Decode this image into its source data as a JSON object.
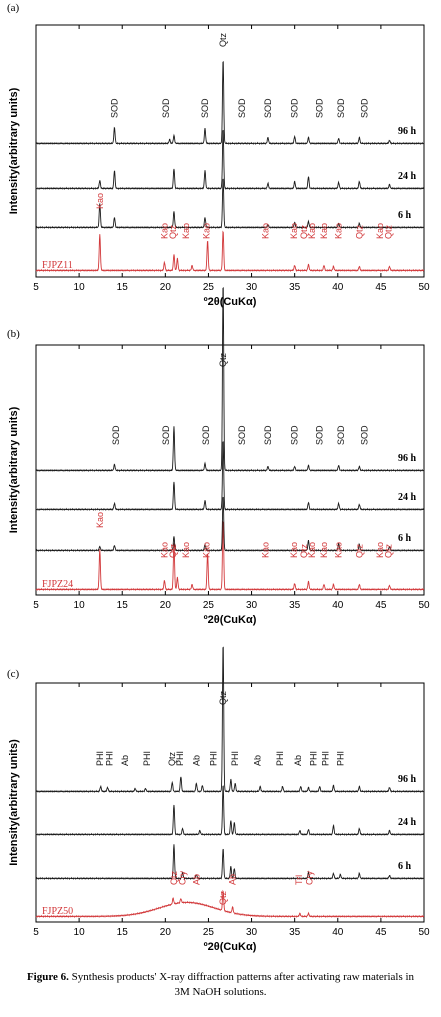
{
  "caption": {
    "label": "Figure 6.",
    "text": "Synthesis products' X-ray diffraction patterns after activating raw materials in 3M NaOH solutions."
  },
  "colors": {
    "raw": "#d2383a",
    "product": "#1a1a1a",
    "axis": "#000000"
  },
  "chart_data": [
    {
      "type": "line",
      "panel_label": "(a)",
      "xlabel": "º2θ(CuKα)",
      "ylabel": "Intensity(arbitrary units)",
      "xlim": [
        5,
        50
      ],
      "xticks": [
        5,
        10,
        15,
        20,
        25,
        30,
        35,
        40,
        45,
        50
      ],
      "grid": false,
      "series": [
        {
          "name": "FJPZ11",
          "role": "raw",
          "peaks": [
            [
              12.4,
              36
            ],
            [
              19.9,
              8
            ],
            [
              21.0,
              16
            ],
            [
              21.4,
              12
            ],
            [
              23.1,
              5
            ],
            [
              24.9,
              30
            ],
            [
              26.7,
              40
            ],
            [
              35.0,
              5
            ],
            [
              36.6,
              6
            ],
            [
              38.4,
              5
            ],
            [
              39.5,
              4
            ],
            [
              42.5,
              4
            ],
            [
              46.0,
              4
            ]
          ]
        },
        {
          "name": "6 h",
          "role": "product",
          "peaks": [
            [
              12.4,
              24
            ],
            [
              14.1,
              10
            ],
            [
              21.0,
              16
            ],
            [
              24.6,
              10
            ],
            [
              26.7,
              50
            ],
            [
              31.9,
              3
            ],
            [
              35.0,
              5
            ],
            [
              36.6,
              6
            ],
            [
              40.1,
              4
            ],
            [
              42.5,
              4
            ]
          ]
        },
        {
          "name": "24 h",
          "role": "product",
          "peaks": [
            [
              12.4,
              8
            ],
            [
              14.1,
              18
            ],
            [
              21.0,
              20
            ],
            [
              24.6,
              18
            ],
            [
              26.7,
              60
            ],
            [
              31.9,
              5
            ],
            [
              35.0,
              7
            ],
            [
              36.6,
              12
            ],
            [
              40.1,
              6
            ],
            [
              42.5,
              7
            ],
            [
              46.0,
              4
            ]
          ]
        },
        {
          "name": "96 h",
          "role": "product",
          "peaks": [
            [
              14.1,
              16
            ],
            [
              20.5,
              4
            ],
            [
              21.0,
              8
            ],
            [
              24.6,
              15
            ],
            [
              26.7,
              85
            ],
            [
              31.9,
              6
            ],
            [
              35.0,
              7
            ],
            [
              36.6,
              6
            ],
            [
              40.1,
              5
            ],
            [
              42.5,
              6
            ],
            [
              46.0,
              3
            ]
          ]
        }
      ],
      "annotations": [
        {
          "text": "SOD",
          "x": 14.1,
          "series": "96 h"
        },
        {
          "text": "SOD",
          "x": 20.1,
          "series": "96 h"
        },
        {
          "text": "SOD",
          "x": 24.6,
          "series": "96 h"
        },
        {
          "text": "Qtz",
          "x": 26.7,
          "series": "96 h"
        },
        {
          "text": "SOD",
          "x": 28.9,
          "series": "96 h"
        },
        {
          "text": "SOD",
          "x": 31.9,
          "series": "96 h"
        },
        {
          "text": "SOD",
          "x": 35.0,
          "series": "96 h"
        },
        {
          "text": "SOD",
          "x": 37.9,
          "series": "96 h"
        },
        {
          "text": "SOD",
          "x": 40.4,
          "series": "96 h"
        },
        {
          "text": "SOD",
          "x": 43.1,
          "series": "96 h"
        },
        {
          "text": "Kao",
          "x": 12.4,
          "series": "FJPZ11"
        },
        {
          "text": "Kao",
          "x": 19.9,
          "series": "FJPZ11"
        },
        {
          "text": "Qtz",
          "x": 20.9,
          "series": "FJPZ11"
        },
        {
          "text": "Kao",
          "x": 22.4,
          "series": "FJPZ11"
        },
        {
          "text": "Kao",
          "x": 24.8,
          "series": "FJPZ11"
        },
        {
          "text": "Kao",
          "x": 31.6,
          "series": "FJPZ11"
        },
        {
          "text": "Kao",
          "x": 34.9,
          "series": "FJPZ11"
        },
        {
          "text": "Qtz",
          "x": 36.1,
          "series": "FJPZ11"
        },
        {
          "text": "Kao",
          "x": 37.0,
          "series": "FJPZ11"
        },
        {
          "text": "Kao",
          "x": 38.4,
          "series": "FJPZ11"
        },
        {
          "text": "Kao",
          "x": 40.1,
          "series": "FJPZ11"
        },
        {
          "text": "Qtz",
          "x": 42.5,
          "series": "FJPZ11"
        },
        {
          "text": "Kao",
          "x": 44.9,
          "series": "FJPZ11"
        },
        {
          "text": "Qtz",
          "x": 45.9,
          "series": "FJPZ11"
        }
      ]
    },
    {
      "type": "line",
      "panel_label": "(b)",
      "xlabel": "º2θ(CuKα)",
      "ylabel": "Intensity(arbitrary units)",
      "xlim": [
        5,
        50
      ],
      "xticks": [
        5,
        10,
        15,
        20,
        25,
        30,
        35,
        40,
        45,
        50
      ],
      "grid": false,
      "series": [
        {
          "name": "FJPZ24",
          "role": "raw",
          "peaks": [
            [
              12.4,
              40
            ],
            [
              19.9,
              9
            ],
            [
              21.0,
              46
            ],
            [
              21.4,
              12
            ],
            [
              23.1,
              5
            ],
            [
              24.9,
              36
            ],
            [
              26.7,
              70
            ],
            [
              35.0,
              6
            ],
            [
              36.6,
              8
            ],
            [
              38.4,
              5
            ],
            [
              39.5,
              5
            ],
            [
              42.5,
              5
            ],
            [
              46.0,
              4
            ]
          ]
        },
        {
          "name": "6 h",
          "role": "product",
          "peaks": [
            [
              12.4,
              4
            ],
            [
              14.1,
              5
            ],
            [
              21.0,
              14
            ],
            [
              24.6,
              6
            ],
            [
              26.7,
              55
            ],
            [
              36.6,
              10
            ],
            [
              40.1,
              7
            ],
            [
              42.5,
              6
            ],
            [
              46.0,
              4
            ]
          ]
        },
        {
          "name": "24 h",
          "role": "product",
          "peaks": [
            [
              14.1,
              6
            ],
            [
              21.0,
              28
            ],
            [
              24.6,
              9
            ],
            [
              26.7,
              70
            ],
            [
              36.6,
              7
            ],
            [
              40.1,
              6
            ],
            [
              42.5,
              5
            ]
          ]
        },
        {
          "name": "96 h",
          "role": "product",
          "peaks": [
            [
              14.1,
              6
            ],
            [
              21.0,
              44
            ],
            [
              24.6,
              7
            ],
            [
              26.7,
              190
            ],
            [
              31.9,
              4
            ],
            [
              35.0,
              4
            ],
            [
              36.6,
              5
            ],
            [
              40.1,
              5
            ],
            [
              42.5,
              4
            ]
          ]
        }
      ],
      "annotations": [
        {
          "text": "SOD",
          "x": 14.3,
          "series": "96 h"
        },
        {
          "text": "SOD",
          "x": 20.1,
          "series": "96 h"
        },
        {
          "text": "SOD",
          "x": 24.7,
          "series": "96 h"
        },
        {
          "text": "Qtz",
          "x": 26.7,
          "series": "96 h"
        },
        {
          "text": "SOD",
          "x": 28.9,
          "series": "96 h"
        },
        {
          "text": "SOD",
          "x": 31.9,
          "series": "96 h"
        },
        {
          "text": "SOD",
          "x": 35.0,
          "series": "96 h"
        },
        {
          "text": "SOD",
          "x": 37.9,
          "series": "96 h"
        },
        {
          "text": "SOD",
          "x": 40.4,
          "series": "96 h"
        },
        {
          "text": "SOD",
          "x": 43.1,
          "series": "96 h"
        },
        {
          "text": "Kao",
          "x": 12.4,
          "series": "FJPZ24"
        },
        {
          "text": "Kao",
          "x": 19.9,
          "series": "FJPZ24"
        },
        {
          "text": "Qtz",
          "x": 20.9,
          "series": "FJPZ24"
        },
        {
          "text": "Kao",
          "x": 22.4,
          "series": "FJPZ24"
        },
        {
          "text": "Kao",
          "x": 24.8,
          "series": "FJPZ24"
        },
        {
          "text": "Kao",
          "x": 31.6,
          "series": "FJPZ24"
        },
        {
          "text": "Kao",
          "x": 34.9,
          "series": "FJPZ24"
        },
        {
          "text": "Qtz",
          "x": 36.1,
          "series": "FJPZ24"
        },
        {
          "text": "Kao",
          "x": 37.0,
          "series": "FJPZ24"
        },
        {
          "text": "Kao",
          "x": 38.4,
          "series": "FJPZ24"
        },
        {
          "text": "Kao",
          "x": 40.1,
          "series": "FJPZ24"
        },
        {
          "text": "Qtz",
          "x": 42.5,
          "series": "FJPZ24"
        },
        {
          "text": "Kao",
          "x": 44.9,
          "series": "FJPZ24"
        },
        {
          "text": "Qtz",
          "x": 45.9,
          "series": "FJPZ24"
        }
      ]
    },
    {
      "type": "line",
      "panel_label": "(c)",
      "xlabel": "º2θ(CuKα)",
      "ylabel": "Intensity(arbitrary units)",
      "xlim": [
        5,
        50
      ],
      "xticks": [
        5,
        10,
        15,
        20,
        25,
        30,
        35,
        40,
        45,
        50
      ],
      "grid": false,
      "series": [
        {
          "name": "FJPZ50",
          "role": "raw",
          "broad_hump": {
            "center": 22.5,
            "width": 4.5,
            "height": 14
          },
          "peaks": [
            [
              20.9,
              6
            ],
            [
              21.8,
              4
            ],
            [
              26.7,
              20
            ],
            [
              27.8,
              6
            ],
            [
              35.6,
              3
            ],
            [
              36.6,
              3
            ]
          ]
        },
        {
          "name": "6 h",
          "role": "product",
          "peaks": [
            [
              21.0,
              34
            ],
            [
              22.0,
              6
            ],
            [
              23.6,
              4
            ],
            [
              26.7,
              30
            ],
            [
              27.6,
              12
            ],
            [
              28.0,
              10
            ],
            [
              36.6,
              6
            ],
            [
              39.5,
              5
            ],
            [
              40.3,
              4
            ],
            [
              42.5,
              5
            ],
            [
              46.0,
              3
            ]
          ]
        },
        {
          "name": "24 h",
          "role": "product",
          "peaks": [
            [
              21.0,
              30
            ],
            [
              22.0,
              6
            ],
            [
              24.0,
              4
            ],
            [
              26.7,
              50
            ],
            [
              27.6,
              14
            ],
            [
              28.0,
              12
            ],
            [
              35.6,
              4
            ],
            [
              36.6,
              5
            ],
            [
              39.5,
              9
            ],
            [
              42.5,
              6
            ],
            [
              46.0,
              4
            ]
          ]
        },
        {
          "name": "96 h",
          "role": "product",
          "peaks": [
            [
              12.5,
              5
            ],
            [
              13.3,
              4
            ],
            [
              16.5,
              3
            ],
            [
              17.7,
              3
            ],
            [
              20.8,
              9
            ],
            [
              21.8,
              15
            ],
            [
              23.6,
              8
            ],
            [
              24.3,
              6
            ],
            [
              26.7,
              150
            ],
            [
              27.6,
              12
            ],
            [
              28.1,
              8
            ],
            [
              31.0,
              5
            ],
            [
              33.6,
              5
            ],
            [
              35.7,
              5
            ],
            [
              36.6,
              4
            ],
            [
              37.9,
              5
            ],
            [
              39.5,
              6
            ],
            [
              42.5,
              5
            ],
            [
              46.0,
              4
            ]
          ]
        }
      ],
      "annotations": [
        {
          "text": "PHI",
          "x": 12.4,
          "series": "96 h"
        },
        {
          "text": "PHI",
          "x": 13.5,
          "series": "96 h"
        },
        {
          "text": "Ab",
          "x": 15.3,
          "series": "96 h"
        },
        {
          "text": "PHI",
          "x": 17.9,
          "series": "96 h"
        },
        {
          "text": "Qtz",
          "x": 20.8,
          "series": "96 h"
        },
        {
          "text": "PHI",
          "x": 21.7,
          "series": "96 h"
        },
        {
          "text": "Ab",
          "x": 23.6,
          "series": "96 h"
        },
        {
          "text": "PHI",
          "x": 25.6,
          "series": "96 h"
        },
        {
          "text": "Qtz",
          "x": 26.7,
          "series": "96 h"
        },
        {
          "text": "PHI",
          "x": 28.1,
          "series": "96 h"
        },
        {
          "text": "Ab",
          "x": 30.7,
          "series": "96 h"
        },
        {
          "text": "PHI",
          "x": 33.3,
          "series": "96 h"
        },
        {
          "text": "Ab",
          "x": 35.4,
          "series": "96 h"
        },
        {
          "text": "PHI",
          "x": 37.2,
          "series": "96 h"
        },
        {
          "text": "PHI",
          "x": 38.6,
          "series": "96 h"
        },
        {
          "text": "PHI",
          "x": 40.3,
          "series": "96 h"
        },
        {
          "text": "Qtz",
          "x": 21.0,
          "series": "FJPZ50"
        },
        {
          "text": "Cry",
          "x": 22.0,
          "series": "FJPZ50"
        },
        {
          "text": "Ab",
          "x": 23.6,
          "series": "FJPZ50"
        },
        {
          "text": "Qtz",
          "x": 26.7,
          "series": "FJPZ50"
        },
        {
          "text": "Ab",
          "x": 27.8,
          "series": "FJPZ50"
        },
        {
          "text": "Trl",
          "x": 35.5,
          "series": "FJPZ50"
        },
        {
          "text": "Cry",
          "x": 36.7,
          "series": "FJPZ50"
        }
      ]
    }
  ]
}
